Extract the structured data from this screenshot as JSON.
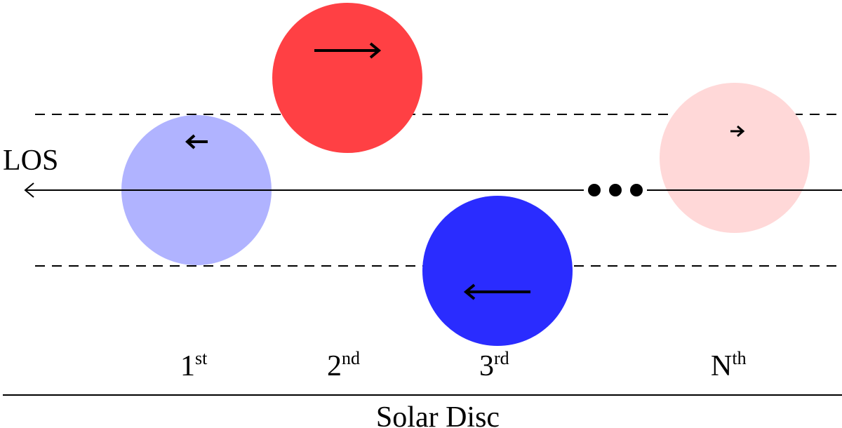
{
  "los_label": "LOS",
  "solar_disc_label": "Solar Disc",
  "ellipsis": "• • •",
  "blobs": [
    {
      "id": "1",
      "label_main": "1",
      "label_sup": "st",
      "color": "#b0b3ff",
      "arrow_direction": "left",
      "arrow_size": "small"
    },
    {
      "id": "2",
      "label_main": "2",
      "label_sup": "nd",
      "color": "#ff4044",
      "arrow_direction": "right",
      "arrow_size": "large"
    },
    {
      "id": "3",
      "label_main": "3",
      "label_sup": "rd",
      "color": "#2a2cff",
      "arrow_direction": "left",
      "arrow_size": "large"
    },
    {
      "id": "N",
      "label_main": "N",
      "label_sup": "th",
      "color": "#ffd8d8",
      "arrow_direction": "right",
      "arrow_size": "small"
    }
  ],
  "colors": {
    "line": "#000000",
    "background": "#ffffff"
  }
}
